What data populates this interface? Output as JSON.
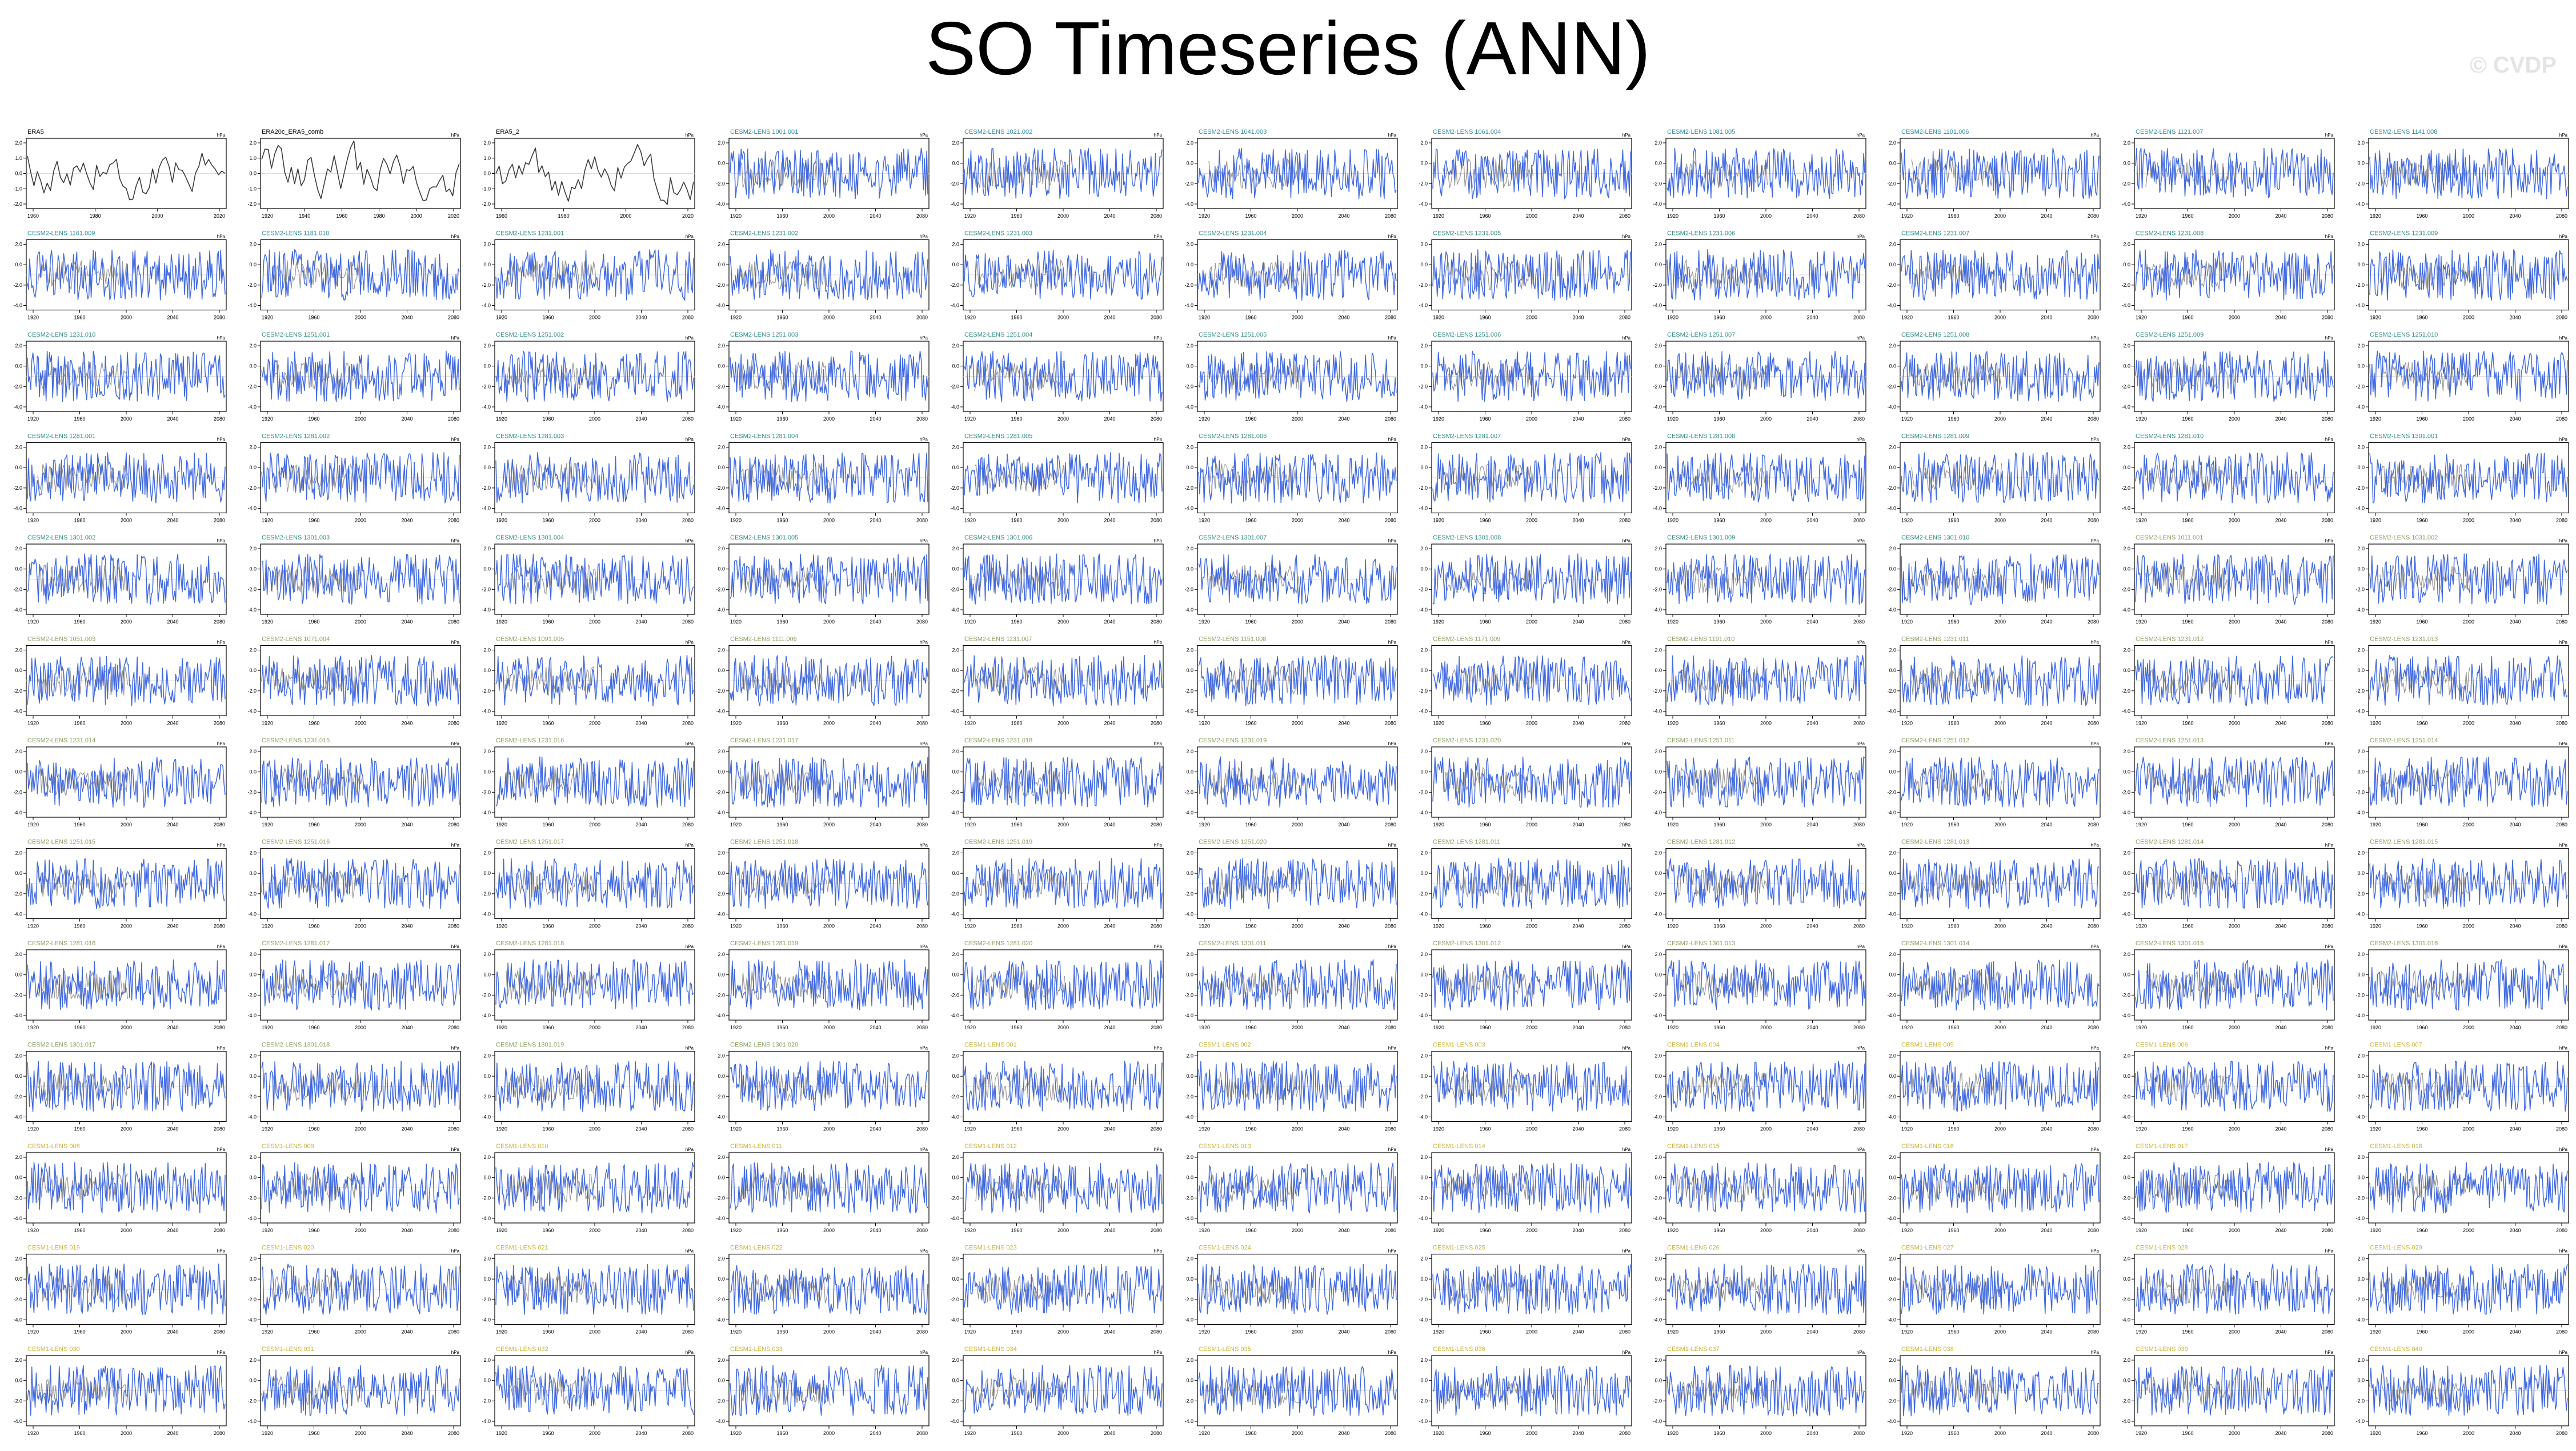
{
  "title": "SO Timeseries (ANN)",
  "watermark": "© CVDP",
  "colors": {
    "obs_line": "#3c3c3c",
    "model_line": "#4169e1",
    "ensemble_mean_line": "#9a9a9a",
    "title_obs": "#000000",
    "title_1001_1101": "#2a8aa6",
    "title_1231_1301": "#2f8c84",
    "title_smbb": "#8aa060",
    "title_cesm1": "#c9b43a",
    "frame": "#000000"
  },
  "chart_data": {
    "type": "line",
    "layout": {
      "rows": 13,
      "cols": 11
    },
    "units_label": "hPa",
    "panels": [
      {
        "title": "ERA5",
        "group": "obs",
        "units": "hPa",
        "x_ticks": [
          "1960",
          "1980",
          "2000",
          "2020"
        ],
        "y_ticks": [
          "2.0",
          "1.0",
          "0.0",
          "-1.0",
          "-2.0"
        ]
      },
      {
        "title": "ERA20c_ERA5_comb",
        "group": "obs",
        "units": "hPa",
        "x_ticks": [
          "1920",
          "1940",
          "1960",
          "1980",
          "2000",
          "2020"
        ],
        "y_ticks": [
          "2.0",
          "1.0",
          "0.0",
          "-1.0",
          "-2.0"
        ]
      },
      {
        "title": "ERA5_2",
        "group": "obs",
        "units": "hPa",
        "x_ticks": [
          "1960",
          "1980",
          "2000",
          "2020"
        ],
        "y_ticks": [
          "2.0",
          "1.0",
          "0.0",
          "-1.0",
          "-2.0"
        ]
      },
      {
        "title": "CESM2-LENS 1001.001",
        "group": "g1"
      },
      {
        "title": "CESM2-LENS 1021.002",
        "group": "g1"
      },
      {
        "title": "CESM2-LENS 1041.003",
        "group": "g1"
      },
      {
        "title": "CESM2-LENS 1061.004",
        "group": "g1"
      },
      {
        "title": "CESM2-LENS 1081.005",
        "group": "g1"
      },
      {
        "title": "CESM2-LENS 1101.006",
        "group": "g1"
      },
      {
        "title": "CESM2-LENS 1121.007",
        "group": "g1"
      },
      {
        "title": "CESM2-LENS 1141.008",
        "group": "g1"
      },
      {
        "title": "CESM2-LENS 1161.009",
        "group": "g1"
      },
      {
        "title": "CESM2-LENS 1181.010",
        "group": "g1"
      },
      {
        "title": "CESM2-LENS 1231.001",
        "group": "g2"
      },
      {
        "title": "CESM2-LENS 1231.002",
        "group": "g2"
      },
      {
        "title": "CESM2-LENS 1231.003",
        "group": "g2"
      },
      {
        "title": "CESM2-LENS 1231.004",
        "group": "g2"
      },
      {
        "title": "CESM2-LENS 1231.005",
        "group": "g2"
      },
      {
        "title": "CESM2-LENS 1231.006",
        "group": "g2"
      },
      {
        "title": "CESM2-LENS 1231.007",
        "group": "g2"
      },
      {
        "title": "CESM2-LENS 1231.008",
        "group": "g2"
      },
      {
        "title": "CESM2-LENS 1231.009",
        "group": "g2"
      },
      {
        "title": "CESM2-LENS 1231.010",
        "group": "g2"
      },
      {
        "title": "CESM2-LENS 1251.001",
        "group": "g2"
      },
      {
        "title": "CESM2-LENS 1251.002",
        "group": "g2"
      },
      {
        "title": "CESM2-LENS 1251.003",
        "group": "g2"
      },
      {
        "title": "CESM2-LENS 1251.004",
        "group": "g2"
      },
      {
        "title": "CESM2-LENS 1251.005",
        "group": "g2"
      },
      {
        "title": "CESM2-LENS 1251.006",
        "group": "g2"
      },
      {
        "title": "CESM2-LENS 1251.007",
        "group": "g2"
      },
      {
        "title": "CESM2-LENS 1251.008",
        "group": "g2"
      },
      {
        "title": "CESM2-LENS 1251.009",
        "group": "g2"
      },
      {
        "title": "CESM2-LENS 1251.010",
        "group": "g2"
      },
      {
        "title": "CESM2-LENS 1281.001",
        "group": "g2"
      },
      {
        "title": "CESM2-LENS 1281.002",
        "group": "g2"
      },
      {
        "title": "CESM2-LENS 1281.003",
        "group": "g2"
      },
      {
        "title": "CESM2-LENS 1281.004",
        "group": "g2"
      },
      {
        "title": "CESM2-LENS 1281.005",
        "group": "g2"
      },
      {
        "title": "CESM2-LENS 1281.006",
        "group": "g2"
      },
      {
        "title": "CESM2-LENS 1281.007",
        "group": "g2"
      },
      {
        "title": "CESM2-LENS 1281.008",
        "group": "g2"
      },
      {
        "title": "CESM2-LENS 1281.009",
        "group": "g2"
      },
      {
        "title": "CESM2-LENS 1281.010",
        "group": "g2"
      },
      {
        "title": "CESM2-LENS 1301.001",
        "group": "g2"
      },
      {
        "title": "CESM2-LENS 1301.002",
        "group": "g2"
      },
      {
        "title": "CESM2-LENS 1301.003",
        "group": "g2"
      },
      {
        "title": "CESM2-LENS 1301.004",
        "group": "g2"
      },
      {
        "title": "CESM2-LENS 1301.005",
        "group": "g2"
      },
      {
        "title": "CESM2-LENS 1301.006",
        "group": "g2"
      },
      {
        "title": "CESM2-LENS 1301.007",
        "group": "g2"
      },
      {
        "title": "CESM2-LENS 1301.008",
        "group": "g2"
      },
      {
        "title": "CESM2-LENS 1301.009",
        "group": "g2"
      },
      {
        "title": "CESM2-LENS 1301.010",
        "group": "g2"
      },
      {
        "title": "CESM2-LENS 1011.001",
        "group": "g3"
      },
      {
        "title": "CESM2-LENS 1031.002",
        "group": "g3"
      },
      {
        "title": "CESM2-LENS 1051.003",
        "group": "g3"
      },
      {
        "title": "CESM2-LENS 1071.004",
        "group": "g3"
      },
      {
        "title": "CESM2-LENS 1091.005",
        "group": "g3"
      },
      {
        "title": "CESM2-LENS 1111.006",
        "group": "g3"
      },
      {
        "title": "CESM2-LENS 1131.007",
        "group": "g3"
      },
      {
        "title": "CESM2-LENS 1151.008",
        "group": "g3"
      },
      {
        "title": "CESM2-LENS 1171.009",
        "group": "g3"
      },
      {
        "title": "CESM2-LENS 1191.010",
        "group": "g3"
      },
      {
        "title": "CESM2-LENS 1231.011",
        "group": "g3"
      },
      {
        "title": "CESM2-LENS 1231.012",
        "group": "g3"
      },
      {
        "title": "CESM2-LENS 1231.013",
        "group": "g3"
      },
      {
        "title": "CESM2-LENS 1231.014",
        "group": "g3"
      },
      {
        "title": "CESM2-LENS 1231.015",
        "group": "g3"
      },
      {
        "title": "CESM2-LENS 1231.016",
        "group": "g3"
      },
      {
        "title": "CESM2-LENS 1231.017",
        "group": "g3"
      },
      {
        "title": "CESM2-LENS 1231.018",
        "group": "g3"
      },
      {
        "title": "CESM2-LENS 1231.019",
        "group": "g3"
      },
      {
        "title": "CESM2-LENS 1231.020",
        "group": "g3"
      },
      {
        "title": "CESM2-LENS 1251.011",
        "group": "g3"
      },
      {
        "title": "CESM2-LENS 1251.012",
        "group": "g3"
      },
      {
        "title": "CESM2-LENS 1251.013",
        "group": "g3"
      },
      {
        "title": "CESM2-LENS 1251.014",
        "group": "g3"
      },
      {
        "title": "CESM2-LENS 1251.015",
        "group": "g3"
      },
      {
        "title": "CESM2-LENS 1251.016",
        "group": "g3"
      },
      {
        "title": "CESM2-LENS 1251.017",
        "group": "g3"
      },
      {
        "title": "CESM2-LENS 1251.018",
        "group": "g3"
      },
      {
        "title": "CESM2-LENS 1251.019",
        "group": "g3"
      },
      {
        "title": "CESM2-LENS 1251.020",
        "group": "g3"
      },
      {
        "title": "CESM2-LENS 1281.011",
        "group": "g3"
      },
      {
        "title": "CESM2-LENS 1281.012",
        "group": "g3"
      },
      {
        "title": "CESM2-LENS 1281.013",
        "group": "g3"
      },
      {
        "title": "CESM2-LENS 1281.014",
        "group": "g3"
      },
      {
        "title": "CESM2-LENS 1281.015",
        "group": "g3"
      },
      {
        "title": "CESM2-LENS 1281.016",
        "group": "g3"
      },
      {
        "title": "CESM2-LENS 1281.017",
        "group": "g3"
      },
      {
        "title": "CESM2-LENS 1281.018",
        "group": "g3"
      },
      {
        "title": "CESM2-LENS 1281.019",
        "group": "g3"
      },
      {
        "title": "CESM2-LENS 1281.020",
        "group": "g3"
      },
      {
        "title": "CESM2-LENS 1301.011",
        "group": "g3"
      },
      {
        "title": "CESM2-LENS 1301.012",
        "group": "g3"
      },
      {
        "title": "CESM2-LENS 1301.013",
        "group": "g3"
      },
      {
        "title": "CESM2-LENS 1301.014",
        "group": "g3"
      },
      {
        "title": "CESM2-LENS 1301.015",
        "group": "g3"
      },
      {
        "title": "CESM2-LENS 1301.016",
        "group": "g3"
      },
      {
        "title": "CESM2-LENS 1301.017",
        "group": "g3"
      },
      {
        "title": "CESM2-LENS 1301.018",
        "group": "g3"
      },
      {
        "title": "CESM2-LENS 1301.019",
        "group": "g3"
      },
      {
        "title": "CESM2-LENS 1301.020",
        "group": "g3"
      },
      {
        "title": "CESM1-LENS 001",
        "group": "g4"
      },
      {
        "title": "CESM1-LENS 002",
        "group": "g4"
      },
      {
        "title": "CESM1-LENS 003",
        "group": "g4"
      },
      {
        "title": "CESM1-LENS 004",
        "group": "g4"
      },
      {
        "title": "CESM1-LENS 005",
        "group": "g4"
      },
      {
        "title": "CESM1-LENS 006",
        "group": "g4"
      },
      {
        "title": "CESM1-LENS 007",
        "group": "g4"
      },
      {
        "title": "CESM1-LENS 008",
        "group": "g4"
      },
      {
        "title": "CESM1-LENS 009",
        "group": "g4"
      },
      {
        "title": "CESM1-LENS 010",
        "group": "g4"
      },
      {
        "title": "CESM1-LENS 011",
        "group": "g4"
      },
      {
        "title": "CESM1-LENS 012",
        "group": "g4"
      },
      {
        "title": "CESM1-LENS 013",
        "group": "g4"
      },
      {
        "title": "CESM1-LENS 014",
        "group": "g4"
      },
      {
        "title": "CESM1-LENS 015",
        "group": "g4"
      },
      {
        "title": "CESM1-LENS 016",
        "group": "g4"
      },
      {
        "title": "CESM1-LENS 017",
        "group": "g4"
      },
      {
        "title": "CESM1-LENS 018",
        "group": "g4"
      },
      {
        "title": "CESM1-LENS 019",
        "group": "g4"
      },
      {
        "title": "CESM1-LENS 020",
        "group": "g4"
      },
      {
        "title": "CESM1-LENS 021",
        "group": "g4"
      },
      {
        "title": "CESM1-LENS 022",
        "group": "g4"
      },
      {
        "title": "CESM1-LENS 023",
        "group": "g4"
      },
      {
        "title": "CESM1-LENS 024",
        "group": "g4"
      },
      {
        "title": "CESM1-LENS 025",
        "group": "g4"
      },
      {
        "title": "CESM1-LENS 026",
        "group": "g4"
      },
      {
        "title": "CESM1-LENS 027",
        "group": "g4"
      },
      {
        "title": "CESM1-LENS 028",
        "group": "g4"
      },
      {
        "title": "CESM1-LENS 029",
        "group": "g4"
      },
      {
        "title": "CESM1-LENS 030",
        "group": "g4"
      },
      {
        "title": "CESM1-LENS 031",
        "group": "g4"
      },
      {
        "title": "CESM1-LENS 032",
        "group": "g4"
      },
      {
        "title": "CESM1-LENS 033",
        "group": "g4"
      },
      {
        "title": "CESM1-LENS 034",
        "group": "g4"
      },
      {
        "title": "CESM1-LENS 035",
        "group": "g4"
      },
      {
        "title": "CESM1-LENS 036",
        "group": "g4"
      },
      {
        "title": "CESM1-LENS 037",
        "group": "g4"
      },
      {
        "title": "CESM1-LENS 038",
        "group": "g4"
      },
      {
        "title": "CESM1-LENS 039",
        "group": "g4"
      },
      {
        "title": "CESM1-LENS 040",
        "group": "g4"
      }
    ],
    "model_defaults": {
      "units": "hPa",
      "x_ticks": [
        "1920",
        "1960",
        "2000",
        "2040",
        "2080"
      ],
      "y_ticks": [
        "2.0",
        "0.0",
        "-2.0",
        "-4.0"
      ]
    }
  }
}
